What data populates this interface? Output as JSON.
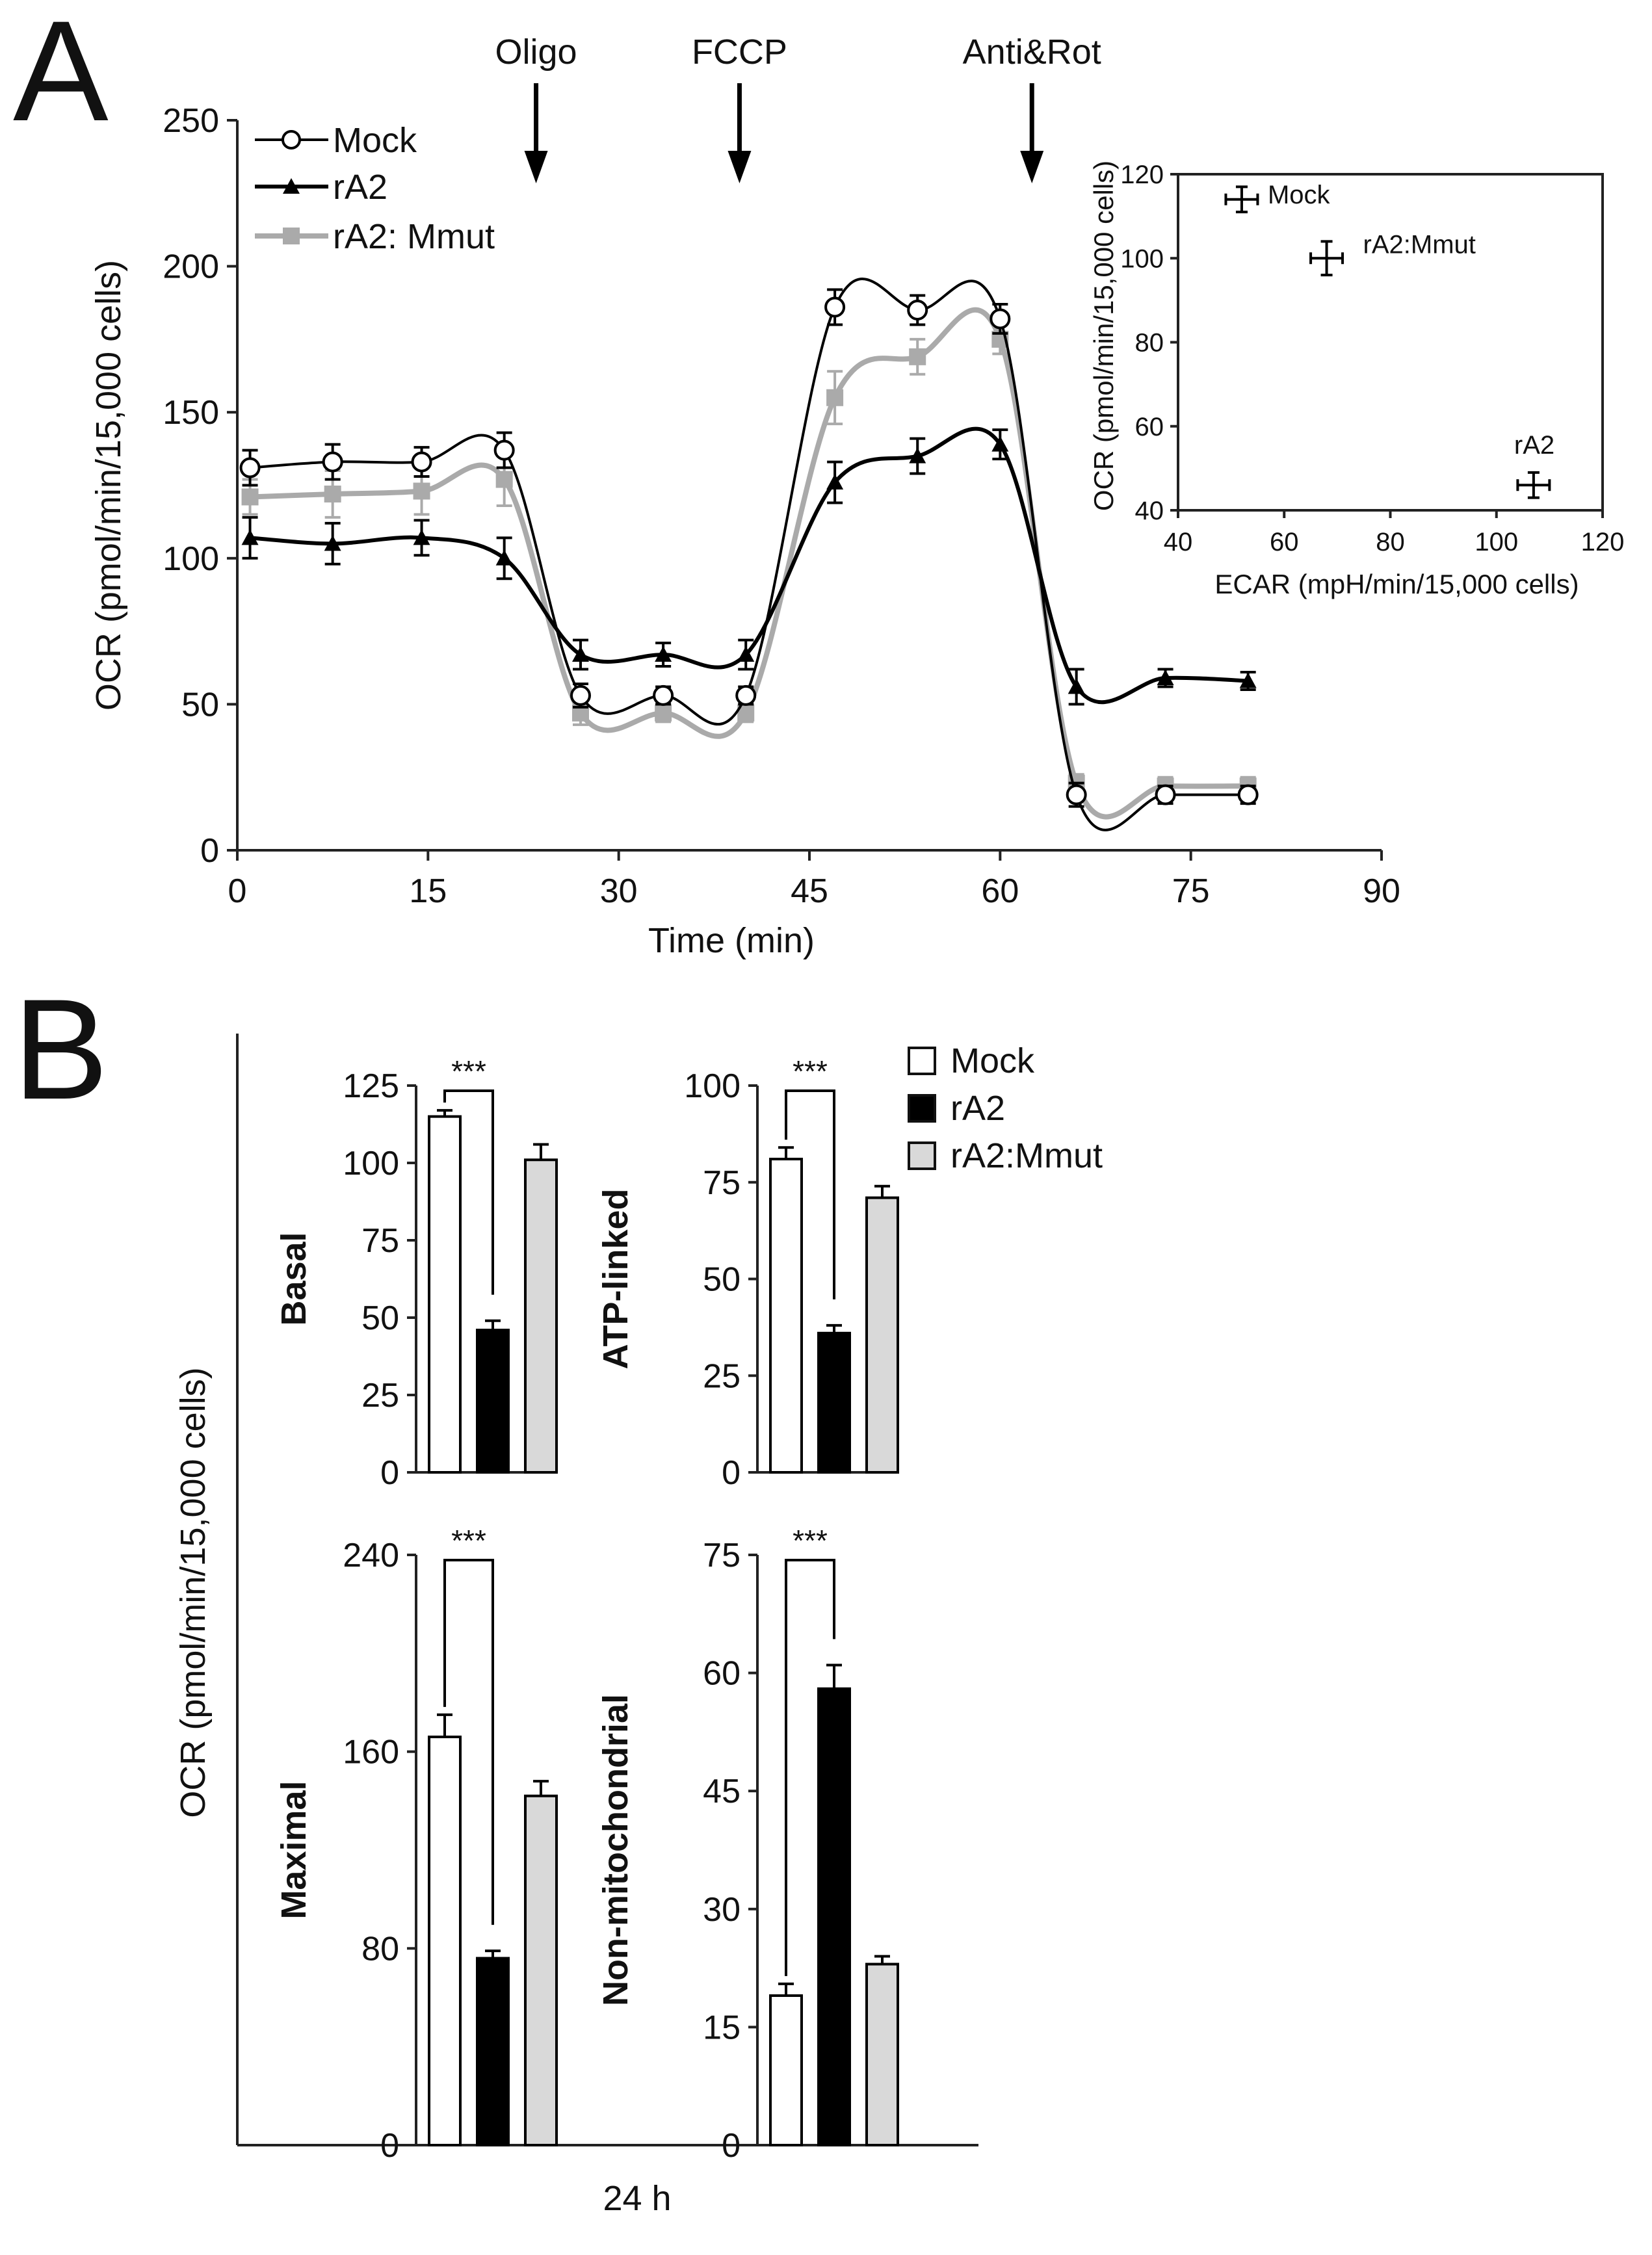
{
  "panels": {
    "a": "A",
    "b": "B"
  },
  "colors": {
    "mock": "#ffffff",
    "ra2": "#000000",
    "ra2mmut": "#aaaaaa",
    "bar_mmut": "#d9d9d9",
    "axis": "#222222"
  },
  "chart_data": [
    {
      "id": "A-main",
      "type": "line",
      "title": "",
      "xlabel": "Time (min)",
      "ylabel": "OCR (pmol/min/15,000 cells)",
      "xlim": [
        0,
        90
      ],
      "ylim": [
        0,
        250
      ],
      "xticks": [
        "0",
        "15",
        "30",
        "45",
        "60",
        "75",
        "90"
      ],
      "yticks": [
        "0",
        "50",
        "100",
        "150",
        "200",
        "250"
      ],
      "x": [
        1,
        7.5,
        14.5,
        21,
        27,
        33.5,
        40,
        47,
        53.5,
        60,
        66,
        73,
        79.5
      ],
      "series": [
        {
          "name": "Mock",
          "marker": "circle",
          "values": [
            131,
            133,
            133,
            137,
            53,
            53,
            53,
            186,
            185,
            182,
            19,
            19,
            19
          ],
          "errors": [
            6,
            6,
            5,
            6,
            4,
            3,
            3,
            6,
            5,
            5,
            4,
            3,
            3
          ]
        },
        {
          "name": "rA2",
          "marker": "triangle",
          "values": [
            107,
            105,
            107,
            100,
            67,
            67,
            67,
            126,
            135,
            139,
            56,
            59,
            58
          ],
          "errors": [
            7,
            7,
            6,
            7,
            5,
            4,
            5,
            7,
            6,
            5,
            6,
            3,
            3
          ]
        },
        {
          "name": "rA2: Mmut",
          "marker": "square",
          "values": [
            121,
            122,
            123,
            127,
            47,
            47,
            47,
            155,
            169,
            175,
            23,
            22,
            22
          ],
          "errors": [
            6,
            8,
            8,
            9,
            4,
            3,
            3,
            9,
            6,
            5,
            3,
            3,
            3
          ]
        }
      ],
      "annotations": [
        {
          "label": "Oligo",
          "x": 23.5
        },
        {
          "label": "FCCP",
          "x": 39.5
        },
        {
          "label": "Anti&Rot",
          "x": 62.5
        }
      ],
      "legend": "top-left"
    },
    {
      "id": "A-inset",
      "type": "scatter",
      "xlabel": "ECAR (mpH/min/15,000 cells)",
      "ylabel": "OCR (pmol/min/15,000 cells)",
      "xlim": [
        40,
        120
      ],
      "ylim": [
        40,
        120
      ],
      "xticks": [
        "40",
        "60",
        "80",
        "100",
        "120"
      ],
      "yticks": [
        "40",
        "60",
        "80",
        "100",
        "120"
      ],
      "points": [
        {
          "label": "Mock",
          "x": 52,
          "y": 114,
          "xerr": 3,
          "yerr": 3
        },
        {
          "label": "rA2:Mmut",
          "x": 68,
          "y": 100,
          "xerr": 3,
          "yerr": 4
        },
        {
          "label": "rA2",
          "x": 107,
          "y": 46,
          "xerr": 3,
          "yerr": 3
        }
      ]
    },
    {
      "id": "B-Basal",
      "type": "bar",
      "title": "Basal",
      "categories": [
        "Mock",
        "rA2",
        "rA2:Mmut"
      ],
      "values": [
        115,
        46,
        101
      ],
      "errors": [
        2,
        3,
        5
      ],
      "ylim": [
        0,
        125
      ],
      "yticks": [
        "0",
        "25",
        "50",
        "75",
        "100",
        "125"
      ],
      "significance": "***"
    },
    {
      "id": "B-ATP",
      "type": "bar",
      "title": "ATP-linked",
      "categories": [
        "Mock",
        "rA2",
        "rA2:Mmut"
      ],
      "values": [
        81,
        36,
        71
      ],
      "errors": [
        3,
        2,
        3
      ],
      "ylim": [
        0,
        100
      ],
      "yticks": [
        "0",
        "25",
        "50",
        "75",
        "100"
      ],
      "significance": "***"
    },
    {
      "id": "B-Maximal",
      "type": "bar",
      "title": "Maximal",
      "categories": [
        "Mock",
        "rA2",
        "rA2:Mmut"
      ],
      "values": [
        166,
        76,
        142
      ],
      "errors": [
        9,
        3,
        6
      ],
      "ylim": [
        0,
        240
      ],
      "yticks": [
        "0",
        "80",
        "160",
        "240"
      ],
      "significance": "***"
    },
    {
      "id": "B-NonMito",
      "type": "bar",
      "title": "Non-mitochondrial",
      "categories": [
        "Mock",
        "rA2",
        "rA2:Mmut"
      ],
      "values": [
        19,
        58,
        23
      ],
      "errors": [
        1.5,
        3,
        1
      ],
      "ylim": [
        0,
        75
      ],
      "yticks": [
        "0",
        "15",
        "30",
        "45",
        "60",
        "75"
      ],
      "significance": "***"
    }
  ],
  "panelB": {
    "ylabel": "OCR (pmol/min/15,000 cells)",
    "xlabel": "24 h",
    "legend": [
      "Mock",
      "rA2",
      "rA2:Mmut"
    ]
  }
}
